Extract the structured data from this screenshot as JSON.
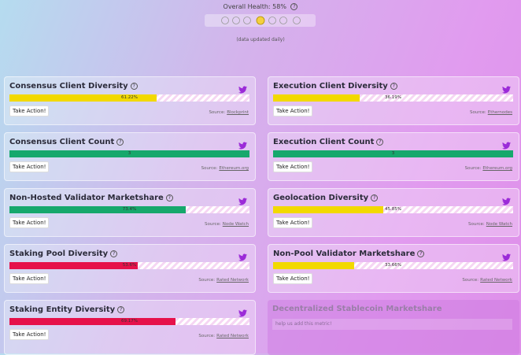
{
  "header": {
    "overall": "Overall Health: 58%",
    "note": "(data updated daily)"
  },
  "button": "Take Action!",
  "source_label": "Source:",
  "cards": [
    {
      "title": "Consensus Client Diversity",
      "value": 61.22,
      "value_label": "61.22%",
      "color": "#f2d900",
      "source": "Blockprint"
    },
    {
      "title": "Execution Client Diversity",
      "value": 36.19,
      "value_label": "36.19%",
      "color": "#f2d900",
      "source": "Ethernodes"
    },
    {
      "title": "Consensus Client Count",
      "value": 3,
      "color": "#16a86c",
      "source": "Ethereum.org"
    },
    {
      "title": "Execution Client Count",
      "value": 3,
      "color": "#16a86c",
      "source": "Ethereum.org"
    },
    {
      "title": "Non-Hosted Validator Marketshare",
      "value": 73.4,
      "value_label": "73.4%",
      "color": "#16a86c",
      "source": "Node Watch"
    },
    {
      "title": "Geolocation Diversity",
      "value": 45.85,
      "value_label": "45.85%",
      "color": "#f2d900",
      "source": "Node Watch"
    },
    {
      "title": "Staking Pool Diversity",
      "value": 53.6,
      "value_label": "53.6%",
      "color": "#e6114a",
      "source": "Rated Network"
    },
    {
      "title": "Non-Pool Validator Marketshare",
      "value": 33.66,
      "value_label": "33.66%",
      "color": "#f2d900",
      "source": "Rated Network"
    },
    {
      "title": "Staking Entity Diversity",
      "value": 69.17,
      "value_label": "69.17%",
      "color": "#e6114a",
      "source": "Rated Network"
    }
  ],
  "placeholder": {
    "title": "Decentralized Stablecoin Marketshare",
    "text": "help us add this metric!"
  }
}
